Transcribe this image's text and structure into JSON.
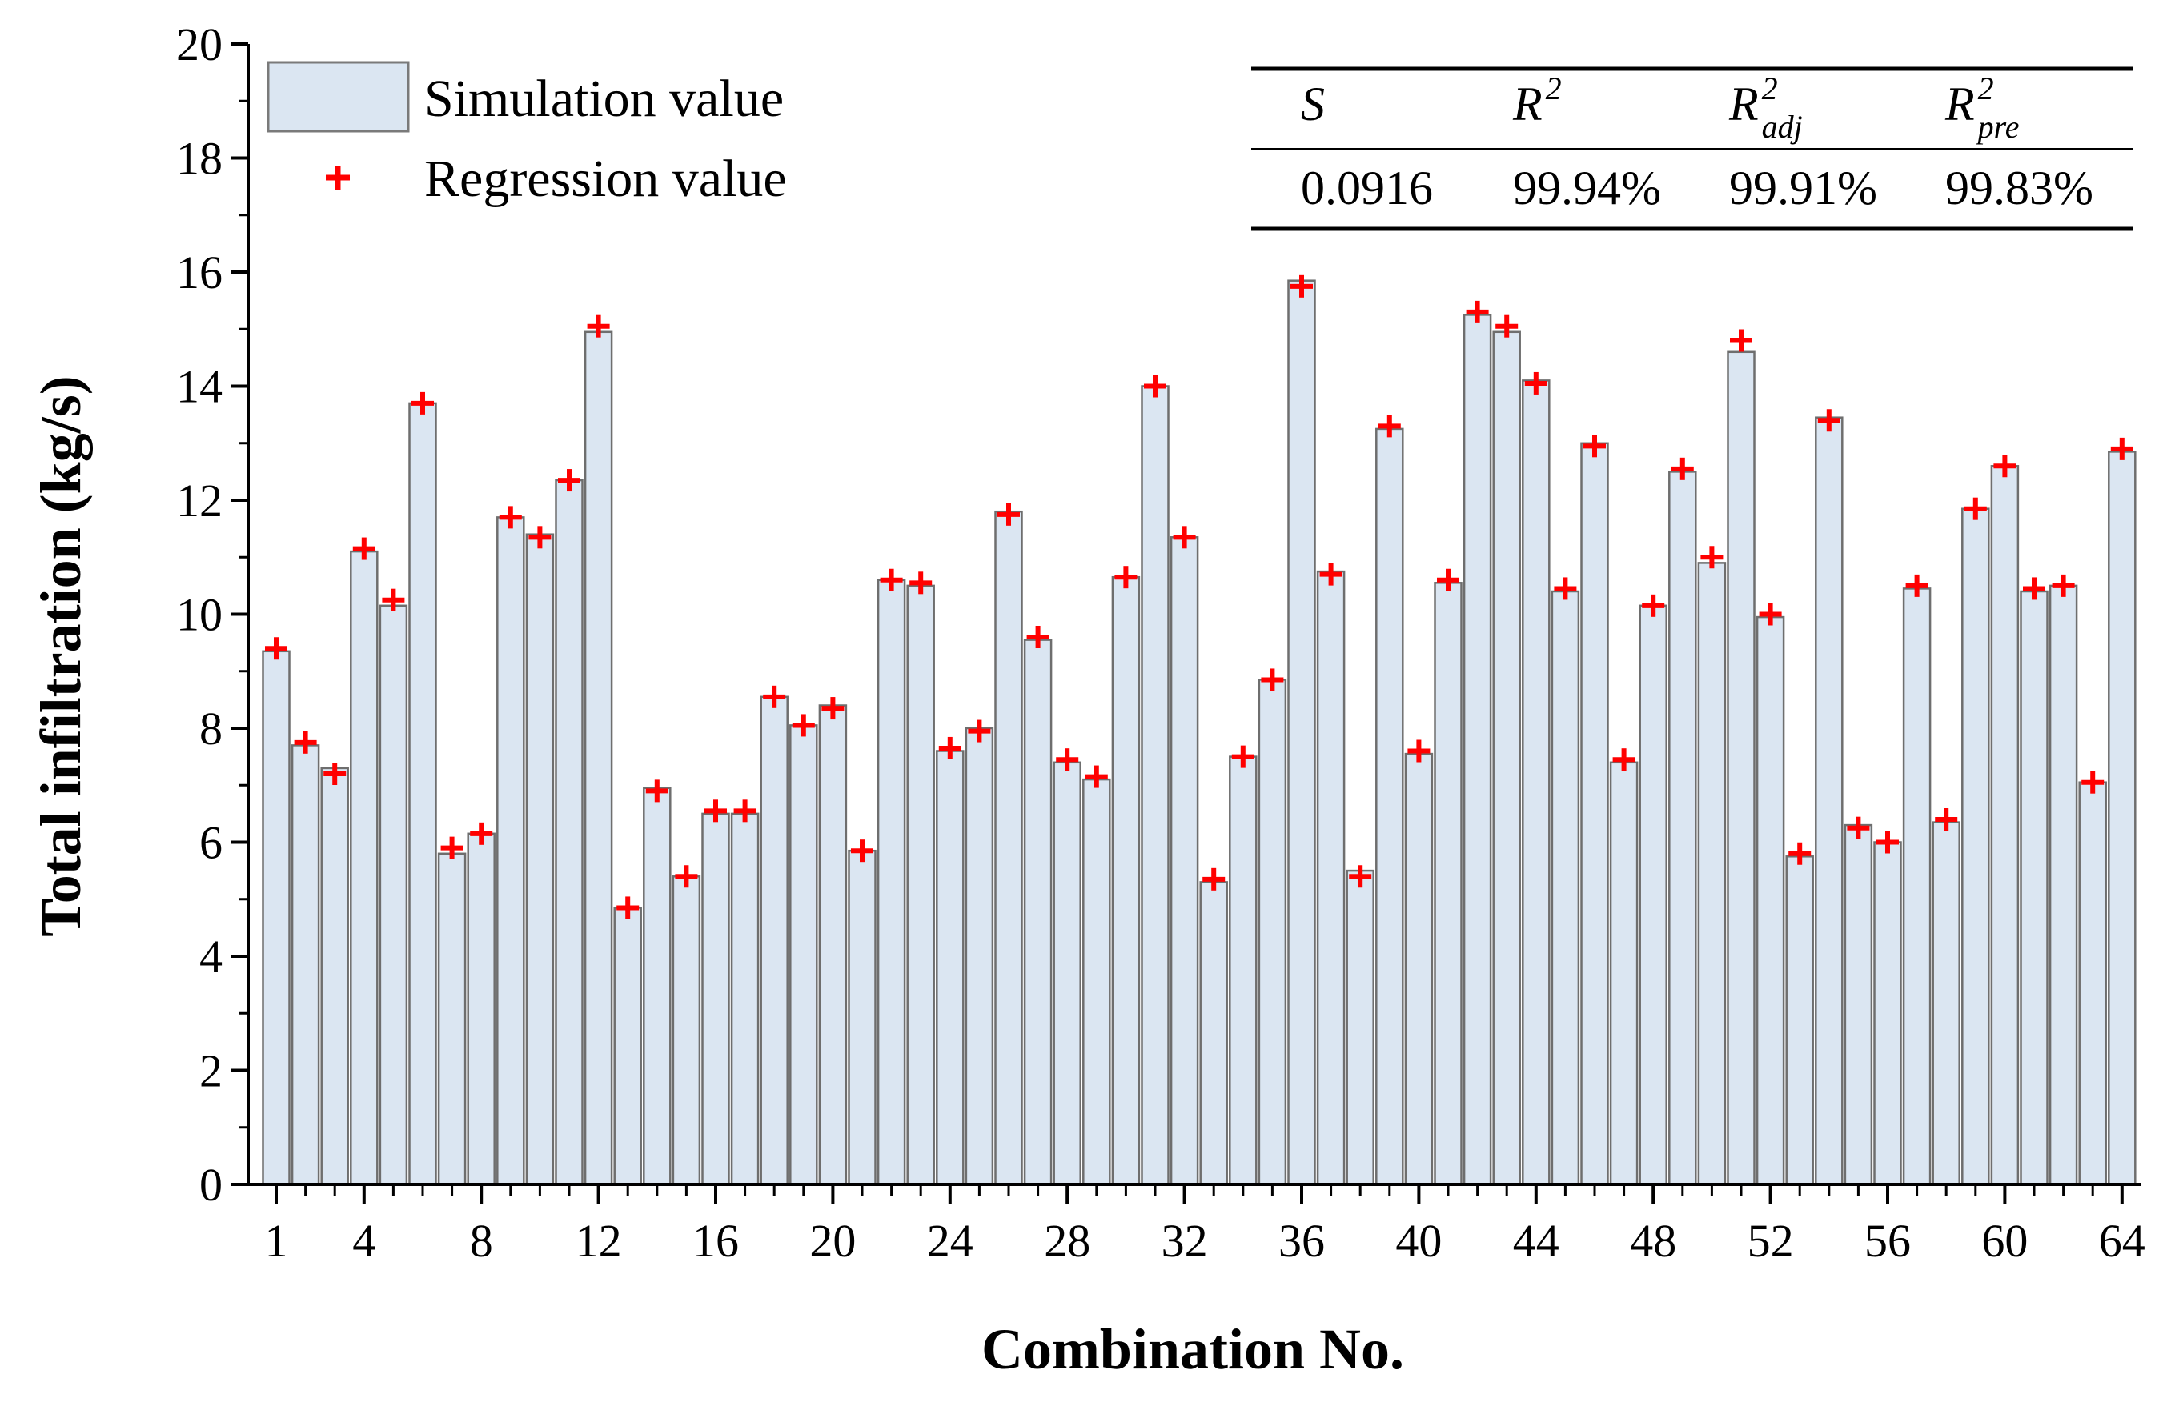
{
  "chart_data": {
    "type": "bar",
    "xlabel": "Combination No.",
    "ylabel": "Total infiltration (kg/s)",
    "ylim": [
      0,
      20
    ],
    "yticks": [
      0,
      2,
      4,
      6,
      8,
      10,
      12,
      14,
      16,
      18,
      20
    ],
    "xtick_labels": [
      "1",
      "4",
      "8",
      "12",
      "16",
      "20",
      "24",
      "28",
      "32",
      "36",
      "40",
      "44",
      "48",
      "52",
      "56",
      "60",
      "64"
    ],
    "grid": false,
    "legend_position": "top-left",
    "categories": [
      1,
      2,
      3,
      4,
      5,
      6,
      7,
      8,
      9,
      10,
      11,
      12,
      13,
      14,
      15,
      16,
      17,
      18,
      19,
      20,
      21,
      22,
      23,
      24,
      25,
      26,
      27,
      28,
      29,
      30,
      31,
      32,
      33,
      34,
      35,
      36,
      37,
      38,
      39,
      40,
      41,
      42,
      43,
      44,
      45,
      46,
      47,
      48,
      49,
      50,
      51,
      52,
      53,
      54,
      55,
      56,
      57,
      58,
      59,
      60,
      61,
      62,
      63,
      64
    ],
    "series": [
      {
        "name": "Simulation value",
        "kind": "bar",
        "color": "#dbe6f2",
        "values": [
          9.35,
          7.7,
          7.3,
          11.1,
          10.15,
          13.7,
          5.8,
          6.15,
          11.7,
          11.4,
          12.35,
          14.95,
          4.85,
          6.95,
          5.4,
          6.5,
          6.5,
          8.55,
          8.05,
          8.4,
          5.85,
          10.6,
          10.5,
          7.6,
          8.0,
          11.8,
          9.55,
          7.4,
          7.1,
          10.65,
          14.0,
          11.35,
          5.3,
          7.5,
          8.85,
          15.85,
          10.75,
          5.5,
          13.25,
          7.55,
          10.55,
          15.25,
          14.95,
          14.1,
          10.4,
          13.0,
          7.4,
          10.15,
          12.5,
          10.9,
          14.6,
          9.95,
          5.75,
          13.45,
          6.3,
          6.0,
          10.45,
          6.35,
          11.85,
          12.6,
          10.4,
          10.5,
          7.05,
          12.85
        ]
      },
      {
        "name": "Regression value",
        "kind": "marker",
        "color": "#ff0000",
        "values": [
          9.4,
          7.75,
          7.2,
          11.15,
          10.25,
          13.7,
          5.9,
          6.15,
          11.7,
          11.35,
          12.35,
          15.05,
          4.85,
          6.9,
          5.4,
          6.55,
          6.55,
          8.55,
          8.05,
          8.35,
          5.85,
          10.6,
          10.55,
          7.65,
          7.95,
          11.75,
          9.6,
          7.45,
          7.15,
          10.65,
          14.0,
          11.35,
          5.35,
          7.5,
          8.85,
          15.75,
          10.7,
          5.4,
          13.3,
          7.6,
          10.6,
          15.3,
          15.05,
          14.05,
          10.45,
          12.95,
          7.45,
          10.15,
          12.55,
          11.0,
          14.8,
          10.0,
          5.8,
          13.4,
          6.25,
          6.0,
          10.5,
          6.4,
          11.85,
          12.6,
          10.45,
          10.5,
          7.05,
          12.9
        ]
      }
    ],
    "stats_table": {
      "headers": [
        {
          "main": "S",
          "sup": "",
          "sub": ""
        },
        {
          "main": "R",
          "sup": "2",
          "sub": ""
        },
        {
          "main": "R",
          "sup": "2",
          "sub": "adj"
        },
        {
          "main": "R",
          "sup": "2",
          "sub": "pre"
        }
      ],
      "values": [
        "0.0916",
        "99.94%",
        "99.91%",
        "99.83%"
      ]
    }
  }
}
